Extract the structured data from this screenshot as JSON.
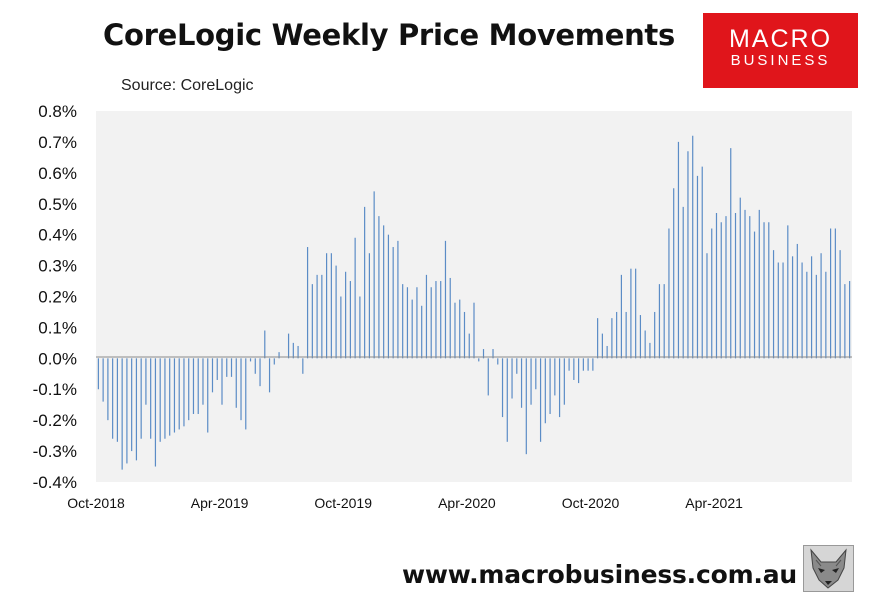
{
  "header": {
    "title": "CoreLogic Weekly Price Movements",
    "source": "Source: CoreLogic"
  },
  "logo": {
    "line1": "MACRO",
    "line2": "BUSINESS",
    "color": "#e0151b",
    "icon": "macrobusiness-logo"
  },
  "footer": {
    "url": "www.macrobusiness.com.au",
    "icon": "fox-icon"
  },
  "colors": {
    "bar": "#5b8cc6",
    "plot_bg": "#f2f2f2"
  },
  "chart_data": {
    "type": "bar",
    "frequency": "weekly",
    "x_tick_labels": [
      "Oct-2018",
      "Apr-2019",
      "Oct-2019",
      "Apr-2020",
      "Oct-2020",
      "Apr-2021"
    ],
    "y_tick_labels": [
      "0.8%",
      "0.7%",
      "0.6%",
      "0.5%",
      "0.4%",
      "0.3%",
      "0.2%",
      "0.1%",
      "0.0%",
      "-0.1%",
      "-0.2%",
      "-0.3%",
      "-0.4%"
    ],
    "ylim": [
      -0.4,
      0.8
    ],
    "yunit": "%",
    "grid": false,
    "legend": "none",
    "values": [
      -0.1,
      -0.14,
      -0.2,
      -0.26,
      -0.27,
      -0.36,
      -0.34,
      -0.3,
      -0.33,
      -0.26,
      -0.15,
      -0.26,
      -0.35,
      -0.27,
      -0.26,
      -0.25,
      -0.24,
      -0.23,
      -0.22,
      -0.2,
      -0.18,
      -0.18,
      -0.15,
      -0.24,
      -0.11,
      -0.07,
      -0.15,
      -0.06,
      -0.06,
      -0.16,
      -0.2,
      -0.23,
      -0.01,
      -0.05,
      -0.09,
      0.09,
      -0.11,
      -0.02,
      0.02,
      0.0,
      0.08,
      0.05,
      0.04,
      -0.05,
      0.36,
      0.24,
      0.27,
      0.27,
      0.34,
      0.34,
      0.3,
      0.2,
      0.28,
      0.25,
      0.39,
      0.2,
      0.49,
      0.34,
      0.54,
      0.46,
      0.43,
      0.4,
      0.36,
      0.38,
      0.24,
      0.23,
      0.19,
      0.23,
      0.17,
      0.27,
      0.23,
      0.25,
      0.25,
      0.38,
      0.26,
      0.18,
      0.19,
      0.15,
      0.08,
      0.18,
      -0.01,
      0.03,
      -0.12,
      0.03,
      -0.02,
      -0.19,
      -0.27,
      -0.13,
      -0.05,
      -0.16,
      -0.31,
      -0.15,
      -0.1,
      -0.27,
      -0.21,
      -0.18,
      -0.12,
      -0.19,
      -0.15,
      -0.04,
      -0.07,
      -0.08,
      -0.04,
      -0.04,
      -0.04,
      0.13,
      0.08,
      0.04,
      0.13,
      0.15,
      0.27,
      0.15,
      0.29,
      0.29,
      0.14,
      0.09,
      0.05,
      0.15,
      0.24,
      0.24,
      0.42,
      0.55,
      0.7,
      0.49,
      0.67,
      0.72,
      0.59,
      0.62,
      0.34,
      0.42,
      0.47,
      0.44,
      0.46,
      0.68,
      0.47,
      0.52,
      0.48,
      0.46,
      0.41,
      0.48,
      0.44,
      0.44,
      0.35,
      0.31,
      0.31,
      0.43,
      0.33,
      0.37,
      0.31,
      0.28,
      0.33,
      0.27,
      0.34,
      0.28,
      0.42,
      0.42,
      0.35,
      0.24,
      0.25
    ]
  }
}
